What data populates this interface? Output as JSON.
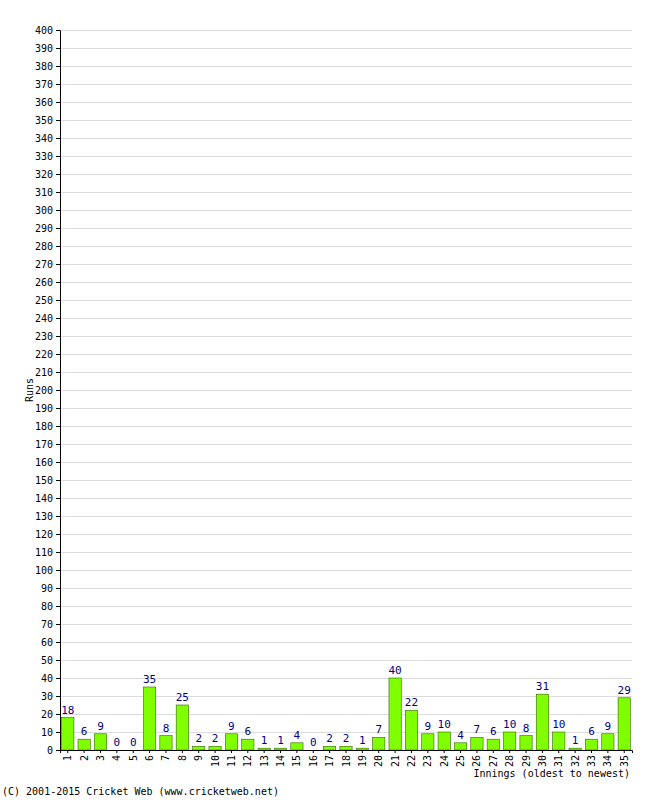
{
  "chart_data": {
    "type": "bar",
    "x_label": "Innings (oldest to newest)",
    "y_label": "Runs",
    "annotations": [
      "(C) 2001-2015 Cricket Web (www.cricketweb.net)"
    ],
    "categories": [
      "1",
      "2",
      "3",
      "4",
      "5",
      "6",
      "7",
      "8",
      "9",
      "10",
      "11",
      "12",
      "13",
      "14",
      "15",
      "16",
      "17",
      "18",
      "19",
      "20",
      "21",
      "22",
      "23",
      "24",
      "25",
      "26",
      "27",
      "28",
      "29",
      "30",
      "31",
      "32",
      "33",
      "34",
      "35"
    ],
    "values": [
      18,
      6,
      9,
      0,
      0,
      35,
      8,
      25,
      2,
      2,
      9,
      6,
      1,
      1,
      4,
      0,
      2,
      2,
      1,
      7,
      40,
      22,
      9,
      10,
      4,
      7,
      6,
      10,
      8,
      31,
      10,
      1,
      6,
      9,
      29
    ],
    "color": "#80ff00",
    "ylim": [
      0,
      400
    ],
    "yticks": [
      0,
      10,
      20,
      30,
      40,
      50,
      60,
      70,
      80,
      90,
      100,
      110,
      120,
      130,
      140,
      150,
      160,
      170,
      180,
      190,
      200,
      210,
      220,
      230,
      240,
      250,
      260,
      270,
      280,
      290,
      300,
      310,
      320,
      330,
      340,
      350,
      360,
      370,
      380,
      390,
      400
    ],
    "grid": true,
    "data_labels": true
  }
}
